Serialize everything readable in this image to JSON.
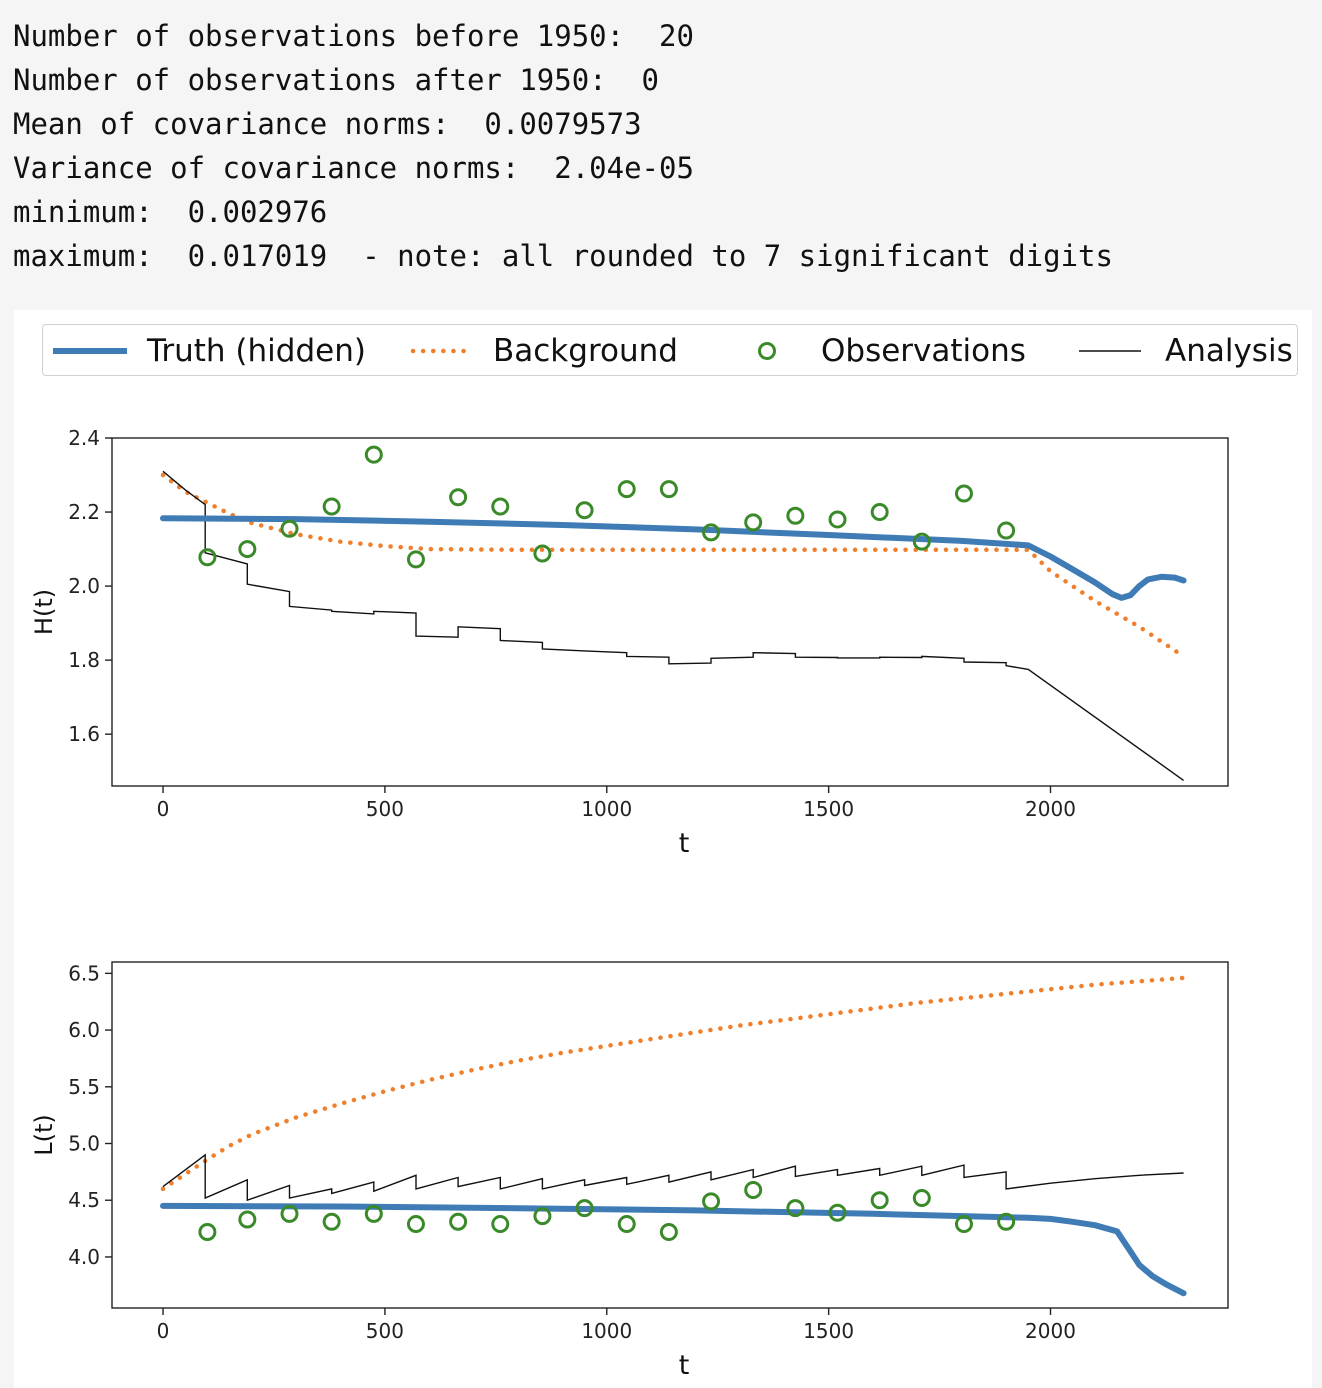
{
  "console": {
    "lines": [
      "Number of observations before 1950:  20",
      "Number of observations after 1950:  0",
      "Mean of covariance norms:  0.0079573",
      "Variance of covariance norms:  2.04e-05",
      "minimum:  0.002976",
      "maximum:  0.017019  - note: all rounded to 7 significant digits"
    ]
  },
  "legend": {
    "items": [
      {
        "label": "Truth (hidden)",
        "style": "solid-thick",
        "color": "#3f7bb5"
      },
      {
        "label": "Background",
        "style": "dotted",
        "color": "#f07f2c"
      },
      {
        "label": "Observations",
        "style": "circle",
        "color": "#3a8a2a"
      },
      {
        "label": "Analysis",
        "style": "solid-thin",
        "color": "#111111"
      }
    ]
  },
  "colors": {
    "truth": "#3f7bb5",
    "background": "#f07f2c",
    "observations": "#3a8a2a",
    "analysis": "#111111"
  },
  "chart_data": [
    {
      "type": "line",
      "xlabel": "t",
      "ylabel": "H(t)",
      "xlim": [
        -115,
        2400
      ],
      "ylim": [
        1.46,
        2.4
      ],
      "xticks": [
        0,
        500,
        1000,
        1500,
        2000
      ],
      "yticks": [
        1.6,
        1.8,
        2.0,
        2.2,
        2.4
      ],
      "ytick_labels": [
        "1.6",
        "1.8",
        "2.0",
        "2.2",
        "2.4"
      ],
      "grid": false,
      "series": [
        {
          "name": "Truth (hidden)",
          "style": "solid-thick",
          "x": [
            0,
            300,
            600,
            900,
            1200,
            1500,
            1800,
            1950,
            2000,
            2050,
            2100,
            2140,
            2160,
            2180,
            2200,
            2220,
            2250,
            2280,
            2300
          ],
          "y": [
            2.183,
            2.181,
            2.174,
            2.165,
            2.153,
            2.138,
            2.122,
            2.11,
            2.08,
            2.045,
            2.01,
            1.978,
            1.968,
            1.975,
            2.0,
            2.018,
            2.025,
            2.023,
            2.015
          ]
        },
        {
          "name": "Background",
          "style": "dotted",
          "x": [
            0,
            50,
            100,
            150,
            200,
            300,
            400,
            500,
            600,
            800,
            1000,
            1200,
            1400,
            1600,
            1800,
            1950,
            2000,
            2100,
            2200,
            2300
          ],
          "y": [
            2.3,
            2.255,
            2.225,
            2.195,
            2.17,
            2.14,
            2.12,
            2.108,
            2.1,
            2.098,
            2.098,
            2.098,
            2.098,
            2.098,
            2.098,
            2.098,
            2.04,
            1.96,
            1.89,
            1.81
          ]
        },
        {
          "name": "Observations",
          "style": "circle",
          "x": [
            100,
            190,
            285,
            380,
            475,
            570,
            665,
            760,
            855,
            950,
            1045,
            1140,
            1235,
            1330,
            1425,
            1520,
            1615,
            1710,
            1805,
            1900
          ],
          "y": [
            2.078,
            2.1,
            2.155,
            2.215,
            2.355,
            2.072,
            2.24,
            2.215,
            2.088,
            2.205,
            2.262,
            2.262,
            2.145,
            2.172,
            2.19,
            2.18,
            2.2,
            2.12,
            2.25,
            2.15
          ]
        },
        {
          "name": "Analysis",
          "style": "solid-thin",
          "x": [
            0,
            50,
            95,
            95,
            190,
            190,
            285,
            285,
            380,
            380,
            475,
            475,
            570,
            570,
            665,
            665,
            760,
            760,
            855,
            855,
            950,
            950,
            1045,
            1045,
            1140,
            1140,
            1235,
            1235,
            1330,
            1330,
            1425,
            1425,
            1520,
            1520,
            1615,
            1615,
            1710,
            1710,
            1805,
            1805,
            1900,
            1900,
            1950,
            2300
          ],
          "y": [
            2.31,
            2.26,
            2.22,
            2.09,
            2.06,
            2.005,
            1.985,
            1.945,
            1.935,
            1.932,
            1.925,
            1.932,
            1.927,
            1.865,
            1.862,
            1.89,
            1.885,
            1.853,
            1.848,
            1.83,
            1.825,
            1.825,
            1.82,
            1.81,
            1.808,
            1.79,
            1.792,
            1.805,
            1.808,
            1.82,
            1.818,
            1.808,
            1.807,
            1.806,
            1.806,
            1.808,
            1.807,
            1.81,
            1.805,
            1.795,
            1.793,
            1.785,
            1.775,
            1.475
          ]
        }
      ]
    },
    {
      "type": "line",
      "xlabel": "t",
      "ylabel": "L(t)",
      "xlim": [
        -115,
        2400
      ],
      "ylim": [
        3.55,
        6.6
      ],
      "xticks": [
        0,
        500,
        1000,
        1500,
        2000
      ],
      "yticks": [
        4.0,
        4.5,
        5.0,
        5.5,
        6.0,
        6.5
      ],
      "ytick_labels": [
        "4.0",
        "4.5",
        "5.0",
        "5.5",
        "6.0",
        "6.5"
      ],
      "grid": false,
      "series": [
        {
          "name": "Truth (hidden)",
          "style": "solid-thick",
          "x": [
            0,
            400,
            800,
            1200,
            1600,
            1950,
            2000,
            2050,
            2100,
            2150,
            2180,
            2200,
            2230,
            2260,
            2300
          ],
          "y": [
            4.45,
            4.445,
            4.43,
            4.41,
            4.38,
            4.345,
            4.335,
            4.31,
            4.28,
            4.225,
            4.05,
            3.93,
            3.83,
            3.76,
            3.68
          ]
        },
        {
          "name": "Background",
          "style": "dotted",
          "x": [
            0,
            50,
            100,
            150,
            200,
            300,
            400,
            500,
            600,
            700,
            800,
            900,
            1000,
            1100,
            1200,
            1300,
            1400,
            1500,
            1600,
            1700,
            1800,
            1900,
            2000,
            2100,
            2200,
            2300
          ],
          "y": [
            4.6,
            4.73,
            4.86,
            4.98,
            5.08,
            5.23,
            5.35,
            5.46,
            5.56,
            5.65,
            5.73,
            5.8,
            5.86,
            5.92,
            5.98,
            6.04,
            6.09,
            6.14,
            6.19,
            6.24,
            6.28,
            6.32,
            6.36,
            6.4,
            6.43,
            6.46
          ]
        },
        {
          "name": "Observations",
          "style": "circle",
          "x": [
            100,
            190,
            285,
            380,
            475,
            570,
            665,
            760,
            855,
            950,
            1045,
            1140,
            1235,
            1330,
            1425,
            1520,
            1615,
            1710,
            1805,
            1900
          ],
          "y": [
            4.22,
            4.33,
            4.38,
            4.31,
            4.38,
            4.29,
            4.31,
            4.29,
            4.36,
            4.43,
            4.29,
            4.22,
            4.49,
            4.59,
            4.43,
            4.39,
            4.5,
            4.52,
            4.29,
            4.31
          ]
        },
        {
          "name": "Analysis",
          "style": "solid-thin",
          "x": [
            0,
            95,
            95,
            190,
            190,
            285,
            285,
            380,
            380,
            475,
            475,
            570,
            570,
            665,
            665,
            760,
            760,
            855,
            855,
            950,
            950,
            1045,
            1045,
            1140,
            1140,
            1235,
            1235,
            1330,
            1330,
            1425,
            1425,
            1520,
            1520,
            1615,
            1615,
            1710,
            1710,
            1805,
            1805,
            1900,
            1900,
            2000,
            2100,
            2200,
            2300
          ],
          "y": [
            4.62,
            4.9,
            4.52,
            4.68,
            4.5,
            4.63,
            4.52,
            4.6,
            4.56,
            4.66,
            4.58,
            4.72,
            4.6,
            4.7,
            4.62,
            4.7,
            4.6,
            4.69,
            4.6,
            4.68,
            4.63,
            4.7,
            4.64,
            4.72,
            4.66,
            4.75,
            4.68,
            4.77,
            4.7,
            4.8,
            4.71,
            4.77,
            4.72,
            4.78,
            4.72,
            4.8,
            4.72,
            4.81,
            4.7,
            4.75,
            4.6,
            4.65,
            4.69,
            4.72,
            4.74
          ]
        }
      ]
    }
  ]
}
